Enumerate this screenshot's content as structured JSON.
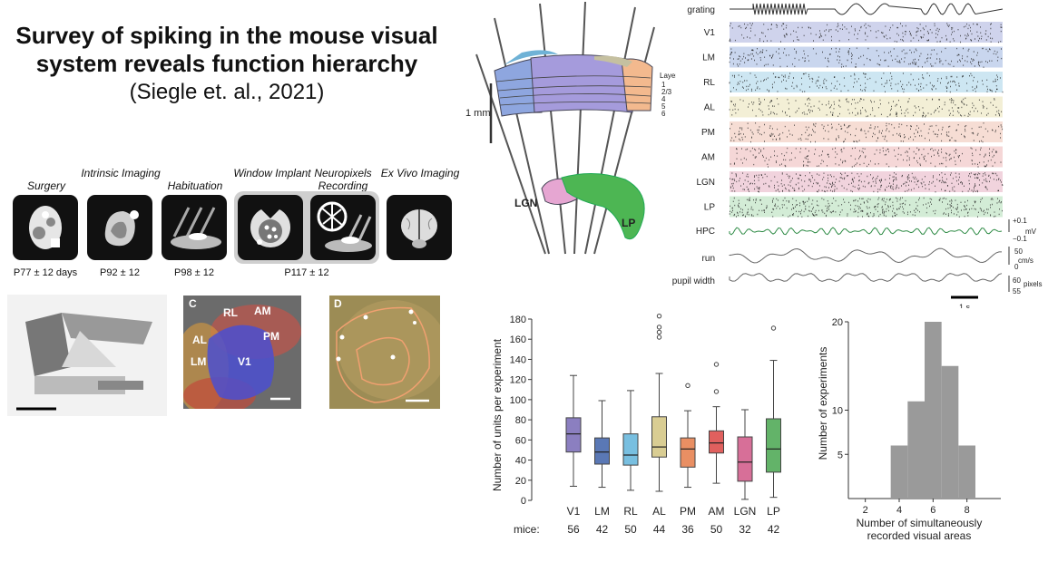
{
  "header": {
    "title_line1": "Survey of spiking in the mouse visual",
    "title_line2": "system reveals function hierarchy",
    "citation": "(Siegle et. al., 2021)"
  },
  "pipeline": {
    "steps": [
      {
        "label": "Surgery",
        "icon": "skull-icon"
      },
      {
        "label": "Intrinsic Imaging",
        "icon": "brain-map-icon"
      },
      {
        "label": "Habituation",
        "icon": "mouse-platform-icon"
      },
      {
        "label": "Window Implant",
        "icon": "window-implant-icon"
      },
      {
        "label": "Neuropixels Recording",
        "icon": "neuropixels-rig-icon"
      },
      {
        "label": "Ex Vivo Imaging",
        "icon": "brain-icon"
      }
    ],
    "ages": [
      "P77 ± 12 days",
      "P92 ± 12",
      "P98 ± 12",
      "P117 ± 12"
    ]
  },
  "panel_c": {
    "letter": "C",
    "areas": [
      "RL",
      "AM",
      "AL",
      "PM",
      "LM",
      "V1"
    ]
  },
  "panel_d": {
    "letter": "D"
  },
  "probe_diagram": {
    "scale_label": "1 mm",
    "layer_title": "Layer",
    "layers": [
      "1",
      "2/3",
      "4",
      "5",
      "6"
    ],
    "lgn_label": "LGN",
    "lp_label": "LP"
  },
  "raster": {
    "stim_label": "grating",
    "areas": [
      {
        "name": "V1",
        "color": "#cfd3ec"
      },
      {
        "name": "LM",
        "color": "#c9d6ee"
      },
      {
        "name": "RL",
        "color": "#cde6f2"
      },
      {
        "name": "AL",
        "color": "#f3efd6"
      },
      {
        "name": "PM",
        "color": "#f6ddd4"
      },
      {
        "name": "AM",
        "color": "#f5d7d7"
      },
      {
        "name": "LGN",
        "color": "#f1d3dd"
      },
      {
        "name": "LP",
        "color": "#d3ecd6"
      }
    ],
    "hpc_label": "HPC",
    "run_label": "run",
    "pupil_label": "pupil width",
    "hpc_scale": [
      "+0.1",
      "mV",
      "−0.1"
    ],
    "run_scale": [
      "50",
      "cm/s",
      "0"
    ],
    "pupil_scale": [
      "60",
      "pixels",
      "55"
    ],
    "time_scale": "1 s"
  },
  "chart_data": [
    {
      "type": "box",
      "ylabel": "Number of units per experiment",
      "ylim": [
        0,
        180
      ],
      "yticks": [
        0,
        20,
        40,
        60,
        80,
        100,
        120,
        140,
        160,
        180
      ],
      "categories": [
        "V1",
        "LM",
        "RL",
        "AL",
        "PM",
        "AM",
        "LGN",
        "LP"
      ],
      "colors": [
        "#8b7fc0",
        "#5a78b5",
        "#78bfe0",
        "#d9cd93",
        "#e98f63",
        "#e0605e",
        "#d76f98",
        "#63b369"
      ],
      "boxes": [
        {
          "min": 14,
          "q1": 48,
          "median": 66,
          "q3": 82,
          "max": 124,
          "outliers": []
        },
        {
          "min": 13,
          "q1": 36,
          "median": 48,
          "q3": 62,
          "max": 99,
          "outliers": []
        },
        {
          "min": 10,
          "q1": 35,
          "median": 45,
          "q3": 66,
          "max": 109,
          "outliers": []
        },
        {
          "min": 9,
          "q1": 43,
          "median": 53,
          "q3": 83,
          "max": 126,
          "outliers": [
            183,
            172,
            167,
            162
          ]
        },
        {
          "min": 13,
          "q1": 33,
          "median": 51,
          "q3": 62,
          "max": 89,
          "outliers": [
            114
          ]
        },
        {
          "min": 17,
          "q1": 47,
          "median": 57,
          "q3": 69,
          "max": 93,
          "outliers": [
            108,
            135
          ]
        },
        {
          "min": 1,
          "q1": 19,
          "median": 38,
          "q3": 63,
          "max": 90,
          "outliers": []
        },
        {
          "min": 3,
          "q1": 28,
          "median": 51,
          "q3": 81,
          "max": 139,
          "outliers": [
            171
          ]
        }
      ],
      "mice_label": "mice:",
      "mice": [
        "56",
        "42",
        "50",
        "44",
        "36",
        "50",
        "32",
        "42"
      ]
    },
    {
      "type": "histogram",
      "xlabel_line1": "Number of simultaneously",
      "xlabel_line2": "recorded visual areas",
      "ylabel": "Number of experiments",
      "xlim": [
        1,
        10
      ],
      "ylim": [
        0,
        20
      ],
      "xticks": [
        2,
        4,
        6,
        8
      ],
      "yticks": [
        "5",
        "10",
        "20"
      ],
      "bins": [
        {
          "x0": 3.5,
          "x1": 4.5,
          "count": 6
        },
        {
          "x0": 4.5,
          "x1": 5.5,
          "count": 11
        },
        {
          "x0": 5.5,
          "x1": 6.5,
          "count": 20
        },
        {
          "x0": 6.5,
          "x1": 7.5,
          "count": 15
        },
        {
          "x0": 7.5,
          "x1": 8.5,
          "count": 6
        }
      ],
      "color": "#9a9a9a"
    }
  ]
}
